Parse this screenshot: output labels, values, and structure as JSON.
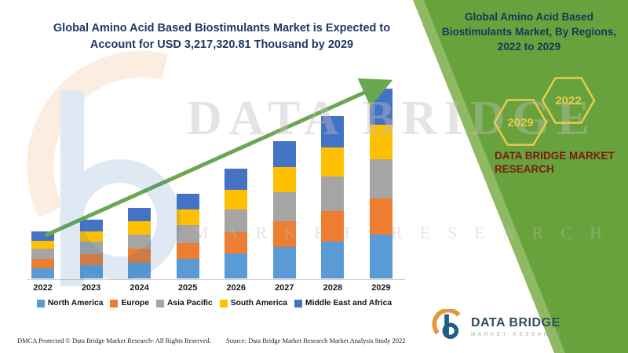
{
  "colors": {
    "panel_green": "#67a23c",
    "panel_green_light": "#8fba63",
    "arrow_green": "#6aa84f",
    "title_navy": "#1f3864",
    "panel_title_navy": "#17365d",
    "maroon": "#7e1a10",
    "hex_gold": "#e9cb4d",
    "logo_teal": "#2f4f5f",
    "logo_subtitle_green": "#93b39f",
    "logo_orange": "#e8953c",
    "logo_blue": "#2e75b6",
    "axis_gray": "#c8c8c8"
  },
  "left": {
    "title_line1": "Global Amino Acid Based Biostimulants Market is Expected to",
    "title_line2": "Account for USD 3,217,320.81 Thousand by 2029"
  },
  "right_panel": {
    "title": "Global Amino Acid Based Biostimulants Market, By Regions, 2022 to 2029",
    "hexagons": [
      "2029",
      "2022"
    ],
    "brand_text": "DATA BRIDGE MARKET RESEARCH"
  },
  "watermark": {
    "line1": "DATA BRIDGE",
    "line2": "MARKET RESEARCH"
  },
  "footer": {
    "dmca": "DMCA Protected © Data Bridge Market Research- All Rights Reserved.",
    "source": "Source: Data Bridge Market Research Market Analysis Study 2022",
    "logo_title": "DATA BRIDGE",
    "logo_subtitle": "MARKET RESEARCH"
  },
  "chart_data": {
    "type": "bar",
    "stacked": true,
    "title": "Global Amino Acid Based Biostimulants Market is Expected to Account for USD 3,217,320.81 Thousand by 2029",
    "unit": "USD Thousand",
    "categories": [
      "2022",
      "2023",
      "2024",
      "2025",
      "2026",
      "2027",
      "2028",
      "2029"
    ],
    "series": [
      {
        "name": "North America",
        "color": "#5B9BD5",
        "values": [
          180000,
          225000,
          270000,
          330000,
          430000,
          535000,
          630000,
          740000
        ]
      },
      {
        "name": "Europe",
        "color": "#ED7D31",
        "values": [
          150000,
          190000,
          230000,
          275000,
          355000,
          440000,
          520000,
          610000
        ]
      },
      {
        "name": "Asia Pacific",
        "color": "#A5A5A5",
        "values": [
          170000,
          210000,
          250000,
          300000,
          390000,
          490000,
          580000,
          677320.81
        ]
      },
      {
        "name": "South America",
        "color": "#FFC000",
        "values": [
          145000,
          180000,
          215000,
          260000,
          335000,
          420000,
          495000,
          580000
        ]
      },
      {
        "name": "Middle East and Africa",
        "color": "#4472C4",
        "values": [
          155000,
          195000,
          235000,
          275000,
          350000,
          445000,
          525000,
          610000
        ]
      }
    ],
    "totals_estimated": [
      800000,
      1000000,
      1200000,
      1440000,
      1860000,
      2330000,
      2750000,
      3217320.81
    ],
    "note": "Segment values estimated from bar heights; 2029 total of 3,217,320.81 USD Thousand is labeled in the title.",
    "value_axis_visible": false,
    "legend_position": "bottom",
    "trend_arrow": true
  }
}
